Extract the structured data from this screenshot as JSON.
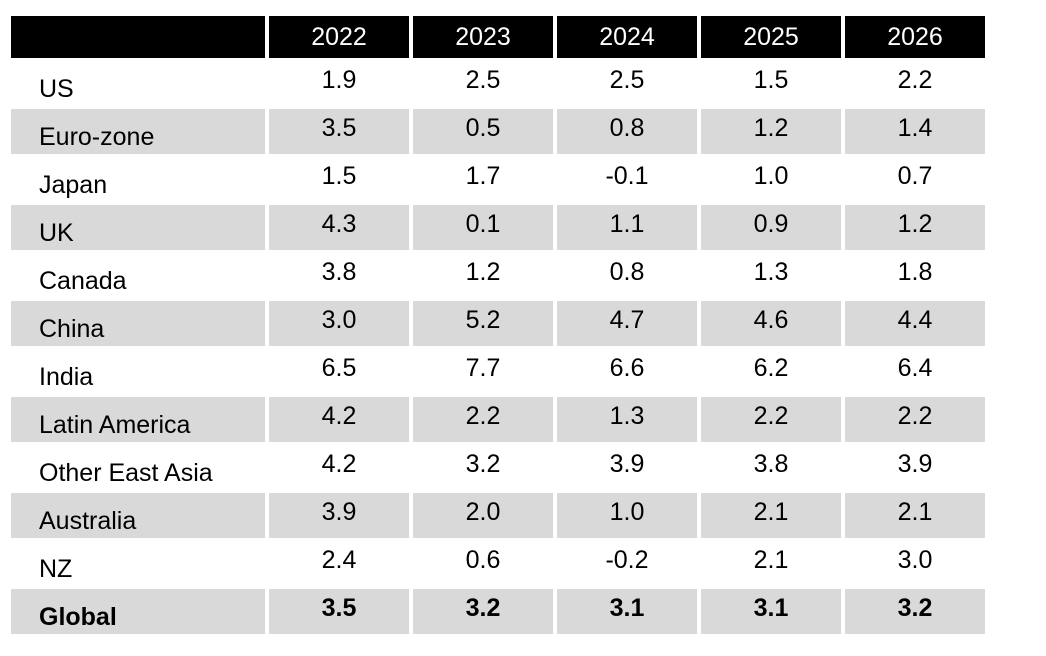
{
  "columns": [
    "2022",
    "2023",
    "2024",
    "2025",
    "2026"
  ],
  "rows": [
    {
      "region": "US",
      "values": [
        "1.9",
        "2.5",
        "2.5",
        "1.5",
        "2.2"
      ],
      "shaded": false,
      "bold": false
    },
    {
      "region": "Euro-zone",
      "values": [
        "3.5",
        "0.5",
        "0.8",
        "1.2",
        "1.4"
      ],
      "shaded": true,
      "bold": false
    },
    {
      "region": "Japan",
      "values": [
        "1.5",
        "1.7",
        "-0.1",
        "1.0",
        "0.7"
      ],
      "shaded": false,
      "bold": false
    },
    {
      "region": "UK",
      "values": [
        "4.3",
        "0.1",
        "1.1",
        "0.9",
        "1.2"
      ],
      "shaded": true,
      "bold": false
    },
    {
      "region": "Canada",
      "values": [
        "3.8",
        "1.2",
        "0.8",
        "1.3",
        "1.8"
      ],
      "shaded": false,
      "bold": false
    },
    {
      "region": "China",
      "values": [
        "3.0",
        "5.2",
        "4.7",
        "4.6",
        "4.4"
      ],
      "shaded": true,
      "bold": false
    },
    {
      "region": "India",
      "values": [
        "6.5",
        "7.7",
        "6.6",
        "6.2",
        "6.4"
      ],
      "shaded": false,
      "bold": false
    },
    {
      "region": "Latin America",
      "values": [
        "4.2",
        "2.2",
        "1.3",
        "2.2",
        "2.2"
      ],
      "shaded": true,
      "bold": false
    },
    {
      "region": "Other East Asia",
      "values": [
        "4.2",
        "3.2",
        "3.9",
        "3.8",
        "3.9"
      ],
      "shaded": false,
      "bold": false
    },
    {
      "region": "Australia",
      "values": [
        "3.9",
        "2.0",
        "1.0",
        "2.1",
        "2.1"
      ],
      "shaded": true,
      "bold": false
    },
    {
      "region": "NZ",
      "values": [
        "2.4",
        "0.6",
        "-0.2",
        "2.1",
        "3.0"
      ],
      "shaded": false,
      "bold": false
    },
    {
      "region": "Global",
      "values": [
        "3.5",
        "3.2",
        "3.1",
        "3.1",
        "3.2"
      ],
      "shaded": true,
      "bold": true
    }
  ],
  "colors": {
    "header_bg": "#000000",
    "header_text": "#ffffff",
    "shade_bg": "#d9d9d9"
  }
}
